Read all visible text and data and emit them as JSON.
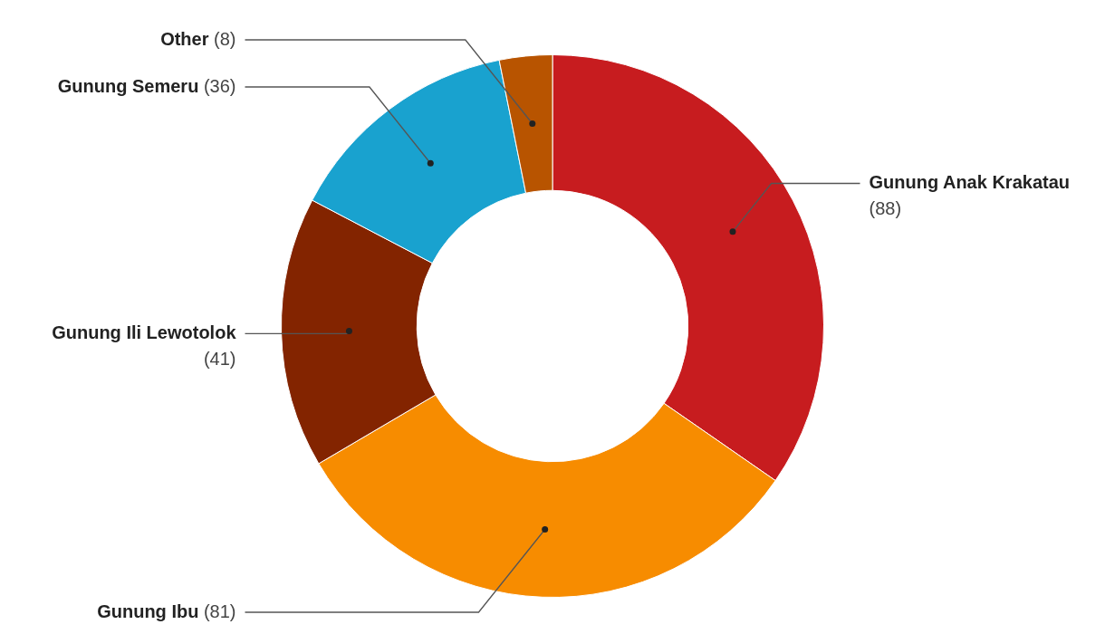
{
  "chart_data": {
    "type": "donut",
    "categories": [
      "Gunung Anak Krakatau",
      "Gunung Ibu",
      "Gunung Ili Lewotolok",
      "Gunung Semeru",
      "Other"
    ],
    "values": [
      88,
      81,
      41,
      36,
      8
    ],
    "colors": [
      "#c71c1f",
      "#f78c00",
      "#832400",
      "#19a2cf",
      "#b85400"
    ],
    "value_labels": [
      "(88)",
      "(81)",
      "(41)",
      "(36)",
      "(8)"
    ],
    "legend": false
  }
}
